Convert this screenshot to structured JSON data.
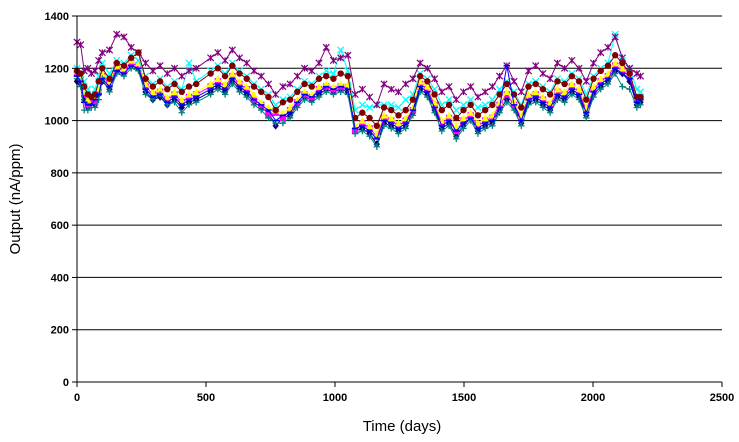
{
  "chart_data": {
    "type": "line",
    "title": "",
    "xlabel": "Time (days)",
    "ylabel": "Output (nA/ppm)",
    "xlim": [
      0,
      2500
    ],
    "ylim": [
      0,
      1400
    ],
    "x_ticks": [
      0,
      500,
      1000,
      1500,
      2000,
      2500
    ],
    "y_ticks": [
      0,
      200,
      400,
      600,
      800,
      1000,
      1200,
      1400
    ],
    "grid": "horizontal major gridlines",
    "legend": "none",
    "x": [
      0,
      14,
      28,
      42,
      56,
      70,
      84,
      98,
      126,
      154,
      182,
      210,
      238,
      266,
      294,
      322,
      350,
      378,
      406,
      434,
      462,
      518,
      546,
      574,
      602,
      630,
      658,
      686,
      714,
      742,
      770,
      798,
      826,
      854,
      882,
      910,
      938,
      966,
      994,
      1022,
      1050,
      1078,
      1106,
      1134,
      1162,
      1190,
      1218,
      1246,
      1274,
      1302,
      1330,
      1358,
      1386,
      1414,
      1442,
      1470,
      1498,
      1526,
      1554,
      1582,
      1610,
      1638,
      1666,
      1694,
      1722,
      1750,
      1778,
      1806,
      1834,
      1862,
      1890,
      1918,
      1946,
      1974,
      2002,
      2030,
      2058,
      2086,
      2114,
      2142,
      2170,
      2184
    ],
    "series": [
      {
        "marker": "diamond",
        "color": "#000080",
        "values": [
          1150,
          1140,
          1080,
          1050,
          1070,
          1060,
          1100,
          1150,
          1120,
          1190,
          1180,
          1210,
          1200,
          1110,
          1080,
          1090,
          1060,
          1080,
          1050,
          1070,
          1080,
          1110,
          1130,
          1110,
          1150,
          1120,
          1100,
          1070,
          1050,
          1030,
          980,
          1010,
          1020,
          1060,
          1090,
          1080,
          1100,
          1120,
          1110,
          1120,
          1110,
          960,
          970,
          950,
          910,
          990,
          980,
          960,
          980,
          1030,
          1120,
          1100,
          1040,
          970,
          990,
          940,
          980,
          1010,
          960,
          980,
          990,
          1040,
          1080,
          1050,
          990,
          1070,
          1080,
          1060,
          1040,
          1090,
          1080,
          1110,
          1090,
          1020,
          1100,
          1130,
          1150,
          1190,
          1180,
          1150,
          1060,
          1070
        ]
      },
      {
        "marker": "square",
        "color": "#FF00FF",
        "values": [
          1180,
          1160,
          1100,
          1060,
          1080,
          1070,
          1110,
          1170,
          1140,
          1200,
          1190,
          1220,
          1210,
          1130,
          1100,
          1110,
          1080,
          1100,
          1070,
          1090,
          1100,
          1130,
          1150,
          1130,
          1170,
          1140,
          1120,
          1080,
          1060,
          1020,
          1030,
          1010,
          1040,
          1070,
          1100,
          1090,
          1120,
          1130,
          1120,
          1130,
          1130,
          960,
          990,
          970,
          940,
          1010,
          1000,
          980,
          1000,
          1040,
          1140,
          1120,
          1060,
          990,
          1010,
          960,
          1000,
          1020,
          980,
          1000,
          1010,
          1060,
          1100,
          1060,
          1010,
          1090,
          1100,
          1080,
          1060,
          1110,
          1100,
          1130,
          1110,
          1040,
          1120,
          1150,
          1170,
          1210,
          1190,
          1170,
          1080,
          1090
        ]
      },
      {
        "marker": "triangle",
        "color": "#FFFF00",
        "values": [
          1190,
          1170,
          1110,
          1080,
          1090,
          1090,
          1120,
          1180,
          1150,
          1210,
          1200,
          1230,
          1220,
          1140,
          1110,
          1120,
          1090,
          1110,
          1080,
          1100,
          1110,
          1140,
          1160,
          1140,
          1180,
          1150,
          1130,
          1100,
          1070,
          1050,
          1040,
          1030,
          1050,
          1080,
          1110,
          1100,
          1130,
          1140,
          1130,
          1140,
          1140,
          980,
          1000,
          980,
          950,
          1020,
          1010,
          990,
          1010,
          1050,
          1150,
          1130,
          1070,
          1000,
          1020,
          980,
          1010,
          1030,
          990,
          1010,
          1020,
          1070,
          1110,
          1070,
          1020,
          1100,
          1110,
          1090,
          1070,
          1120,
          1110,
          1140,
          1120,
          1050,
          1130,
          1160,
          1180,
          1220,
          1200,
          1180,
          1090,
          1100
        ]
      },
      {
        "marker": "x",
        "color": "#00FFFF",
        "values": [
          1200,
          1180,
          1150,
          1120,
          1100,
          1120,
          1170,
          1220,
          1180,
          1230,
          1220,
          1250,
          1230,
          1170,
          1140,
          1160,
          1130,
          1150,
          1120,
          1220,
          1150,
          1190,
          1210,
          1180,
          1220,
          1190,
          1170,
          1140,
          1120,
          1100,
          1060,
          1080,
          1090,
          1120,
          1150,
          1140,
          1170,
          1190,
          1180,
          1270,
          1190,
          1040,
          1060,
          1050,
          1060,
          1060,
          1060,
          1050,
          1080,
          1100,
          1180,
          1160,
          1120,
          1060,
          1080,
          1040,
          1060,
          1080,
          1050,
          1060,
          1080,
          1120,
          1150,
          1110,
          1060,
          1140,
          1150,
          1130,
          1110,
          1160,
          1150,
          1180,
          1160,
          1100,
          1170,
          1200,
          1220,
          1330,
          1230,
          1200,
          1120,
          1110
        ]
      },
      {
        "marker": "asterisk",
        "color": "#800080",
        "values": [
          1300,
          1290,
          1190,
          1200,
          1180,
          1190,
          1230,
          1260,
          1270,
          1330,
          1320,
          1280,
          1260,
          1220,
          1190,
          1210,
          1180,
          1200,
          1170,
          1190,
          1200,
          1240,
          1260,
          1230,
          1270,
          1240,
          1220,
          1190,
          1170,
          1140,
          1100,
          1130,
          1140,
          1170,
          1200,
          1190,
          1220,
          1280,
          1230,
          1240,
          1250,
          1100,
          1120,
          1090,
          1060,
          1140,
          1120,
          1110,
          1140,
          1160,
          1220,
          1200,
          1160,
          1110,
          1130,
          1080,
          1110,
          1130,
          1090,
          1110,
          1130,
          1170,
          1210,
          1150,
          1110,
          1190,
          1210,
          1180,
          1160,
          1220,
          1200,
          1230,
          1200,
          1150,
          1220,
          1260,
          1280,
          1320,
          1240,
          1200,
          1180,
          1170
        ]
      },
      {
        "marker": "circle",
        "color": "#800000",
        "values": [
          1190,
          1180,
          1130,
          1100,
          1090,
          1100,
          1150,
          1200,
          1160,
          1220,
          1210,
          1240,
          1260,
          1160,
          1130,
          1150,
          1120,
          1140,
          1110,
          1130,
          1140,
          1180,
          1200,
          1170,
          1210,
          1180,
          1160,
          1130,
          1110,
          1090,
          1040,
          1070,
          1080,
          1110,
          1140,
          1130,
          1160,
          1170,
          1160,
          1180,
          1170,
          1010,
          1030,
          1010,
          980,
          1050,
          1040,
          1020,
          1040,
          1080,
          1170,
          1150,
          1100,
          1040,
          1060,
          1010,
          1040,
          1060,
          1020,
          1040,
          1060,
          1100,
          1140,
          1100,
          1050,
          1130,
          1140,
          1120,
          1100,
          1150,
          1140,
          1170,
          1150,
          1080,
          1160,
          1190,
          1210,
          1250,
          1220,
          1180,
          1090,
          1090
        ]
      },
      {
        "marker": "plus",
        "color": "#008080",
        "values": [
          1160,
          1130,
          1040,
          1040,
          1050,
          1050,
          1080,
          1160,
          1110,
          1180,
          1170,
          1200,
          1190,
          1100,
          1080,
          1100,
          1060,
          1070,
          1030,
          1060,
          1070,
          1100,
          1120,
          1100,
          1140,
          1110,
          1090,
          1060,
          1040,
          1010,
          990,
          990,
          1010,
          1050,
          1080,
          1070,
          1090,
          1110,
          1100,
          1110,
          1100,
          950,
          960,
          940,
          900,
          980,
          970,
          950,
          970,
          1020,
          1110,
          1090,
          1030,
          960,
          980,
          930,
          970,
          1000,
          950,
          970,
          980,
          1030,
          1070,
          1040,
          980,
          1060,
          1070,
          1050,
          1030,
          1080,
          1070,
          1100,
          1080,
          1010,
          1090,
          1120,
          1140,
          1180,
          1130,
          1120,
          1050,
          1060
        ]
      },
      {
        "marker": "dash",
        "color": "#0000FF",
        "values": [
          1170,
          1150,
          1070,
          1060,
          1060,
          1080,
          1100,
          1160,
          1130,
          1190,
          1180,
          1210,
          1200,
          1120,
          1090,
          1100,
          1070,
          1090,
          1060,
          1080,
          1090,
          1120,
          1140,
          1120,
          1160,
          1130,
          1110,
          1080,
          1060,
          1040,
          1000,
          1020,
          1030,
          1070,
          1100,
          1090,
          1110,
          1130,
          1120,
          1130,
          1120,
          970,
          980,
          960,
          930,
          1000,
          990,
          970,
          990,
          1040,
          1130,
          1110,
          1050,
          980,
          1000,
          960,
          990,
          1010,
          970,
          990,
          1000,
          1050,
          1210,
          1060,
          1000,
          1080,
          1090,
          1070,
          1050,
          1100,
          1090,
          1120,
          1100,
          1030,
          1110,
          1140,
          1160,
          1200,
          1180,
          1160,
          1070,
          1080
        ]
      }
    ]
  }
}
